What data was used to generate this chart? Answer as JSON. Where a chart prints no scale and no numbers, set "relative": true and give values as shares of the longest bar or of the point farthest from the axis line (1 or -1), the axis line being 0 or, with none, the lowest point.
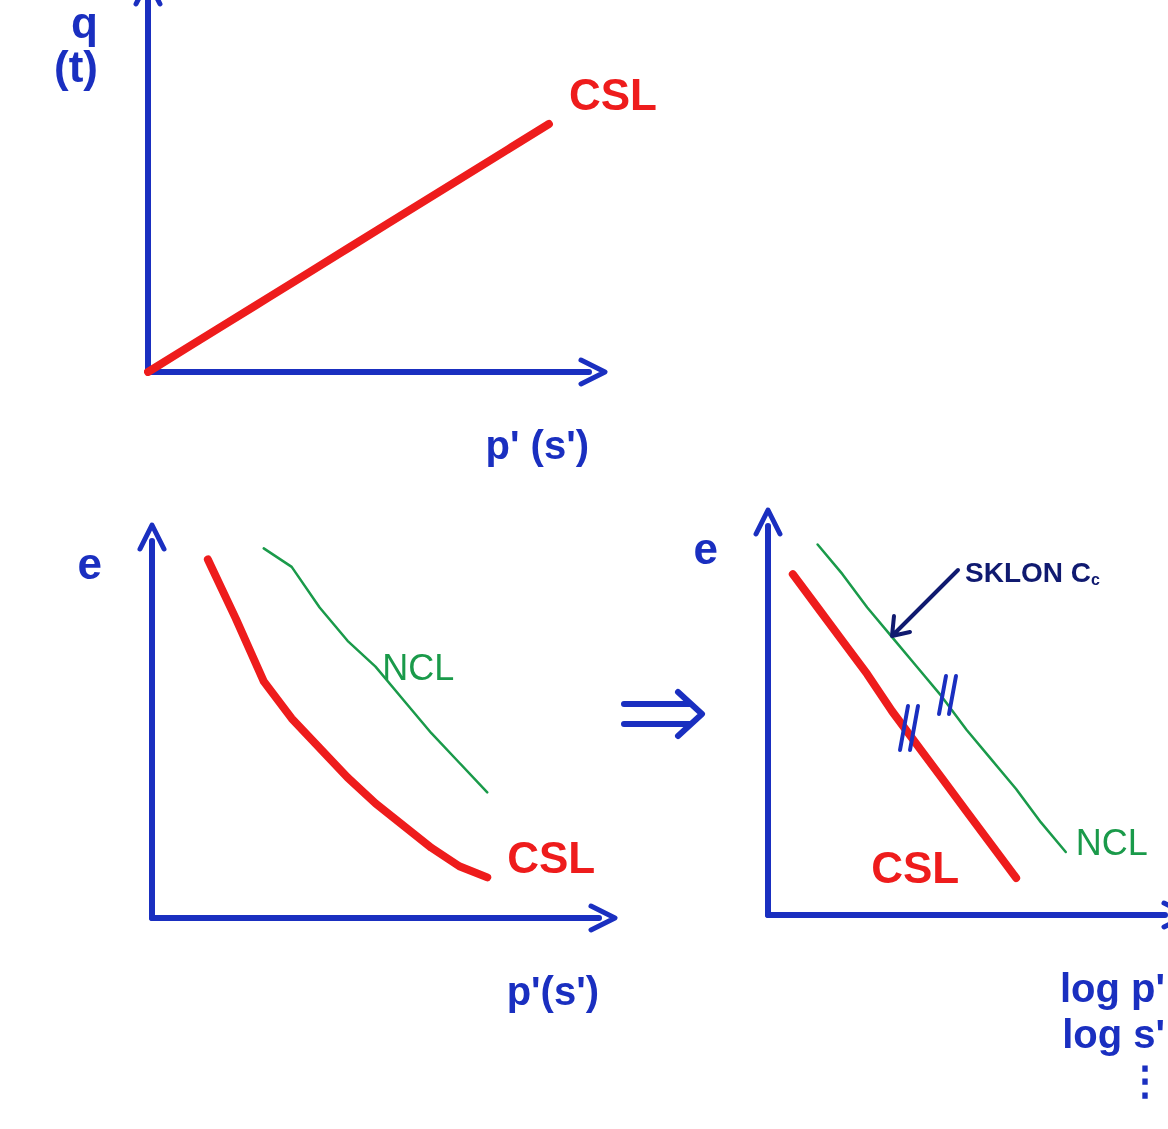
{
  "chart_data": [
    {
      "type": "line",
      "relative": true,
      "marker": "none",
      "ylabel": "q\n(t)",
      "xlabel": "p' (s')",
      "categories": [
        null,
        null,
        null,
        null,
        null,
        null,
        null,
        null,
        null,
        null,
        null,
        null
      ],
      "series": [
        {
          "name": "CSL",
          "color": "#ee1c1c",
          "values": [
            0,
            0.1,
            0.2,
            0.3,
            0.4,
            0.5,
            0.6,
            0.7,
            0.8,
            0.9,
            1,
            null
          ]
        }
      ]
    },
    {
      "type": "line",
      "relative": true,
      "marker": "none",
      "ylabel": "e",
      "xlabel": "p'(s')",
      "categories": [
        null,
        null,
        null,
        null,
        null,
        null,
        null,
        null,
        null,
        null,
        null,
        null,
        null,
        null,
        null,
        null,
        null
      ],
      "series": [
        {
          "name": "CSL",
          "color": "#ee1c1c",
          "values": [
            null,
            null,
            0.97,
            0.81,
            0.64,
            0.54,
            0.46,
            0.38,
            0.31,
            0.25,
            0.19,
            0.14,
            0.11,
            null,
            null,
            null,
            null
          ]
        },
        {
          "name": "NCL",
          "color": "#1a9a4a",
          "values": [
            null,
            null,
            null,
            null,
            1,
            0.95,
            0.84,
            0.75,
            0.68,
            0.59,
            0.5,
            0.42,
            0.34,
            null,
            null,
            null,
            null
          ]
        }
      ]
    },
    {
      "type": "line",
      "relative": true,
      "marker": "none",
      "ylabel": "e",
      "xlabel": "log p'\nlog s'\n⋮",
      "annotations": [
        "SKLON C$_{c}$"
      ],
      "categories": [
        null,
        null,
        null,
        null,
        null,
        null,
        null,
        null,
        null,
        null,
        null,
        null,
        null,
        null,
        null,
        null,
        null
      ],
      "series": [
        {
          "name": "CSL",
          "color": "#ee1c1c",
          "values": [
            null,
            0.92,
            0.83,
            0.74,
            0.65,
            0.55,
            0.46,
            0.37,
            0.28,
            0.19,
            0.1,
            null,
            null,
            null,
            null,
            null,
            null
          ]
        },
        {
          "name": "NCL",
          "color": "#1a9a4a",
          "values": [
            null,
            null,
            1,
            0.92,
            0.83,
            0.75,
            0.67,
            0.59,
            0.5,
            0.42,
            0.34,
            0.25,
            0.17,
            null,
            null,
            null,
            null
          ]
        }
      ]
    }
  ]
}
